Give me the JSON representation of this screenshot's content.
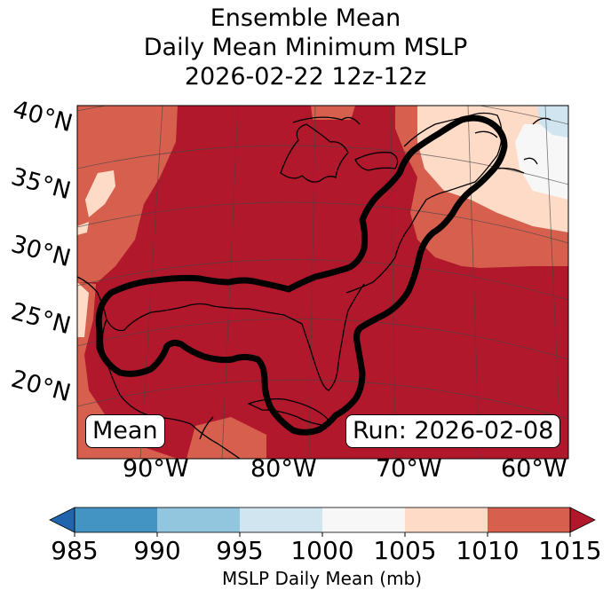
{
  "title": {
    "line1": "Ensemble Mean",
    "line2": "Daily Mean Minimum MSLP",
    "line3": "2026-02-22 12z-12z"
  },
  "map": {
    "lat_labels": [
      "40°N",
      "35°N",
      "30°N",
      "25°N",
      "20°N"
    ],
    "lon_labels": [
      "90°W",
      "80°W",
      "70°W",
      "60°W"
    ],
    "mean_box": "Mean",
    "run_box": "Run: 2026-02-08",
    "colors": {
      "c1015": "#b2182b",
      "c1010": "#d6604d",
      "c1005": "#fddbc7",
      "c1000": "#f7f7f7",
      "c995": "#d1e5f0",
      "c990": "#92c5de",
      "c985": "#4393c3",
      "under": "#2166ac"
    }
  },
  "colorbar": {
    "ticks": [
      "985",
      "990",
      "995",
      "1000",
      "1005",
      "1010",
      "1015"
    ],
    "label": "MSLP Daily Mean (mb)",
    "bins": [
      "#4393c3",
      "#92c5de",
      "#d1e5f0",
      "#f7f7f7",
      "#fddbc7",
      "#d6604d"
    ],
    "under_color": "#2166ac",
    "over_color": "#b2182b"
  }
}
